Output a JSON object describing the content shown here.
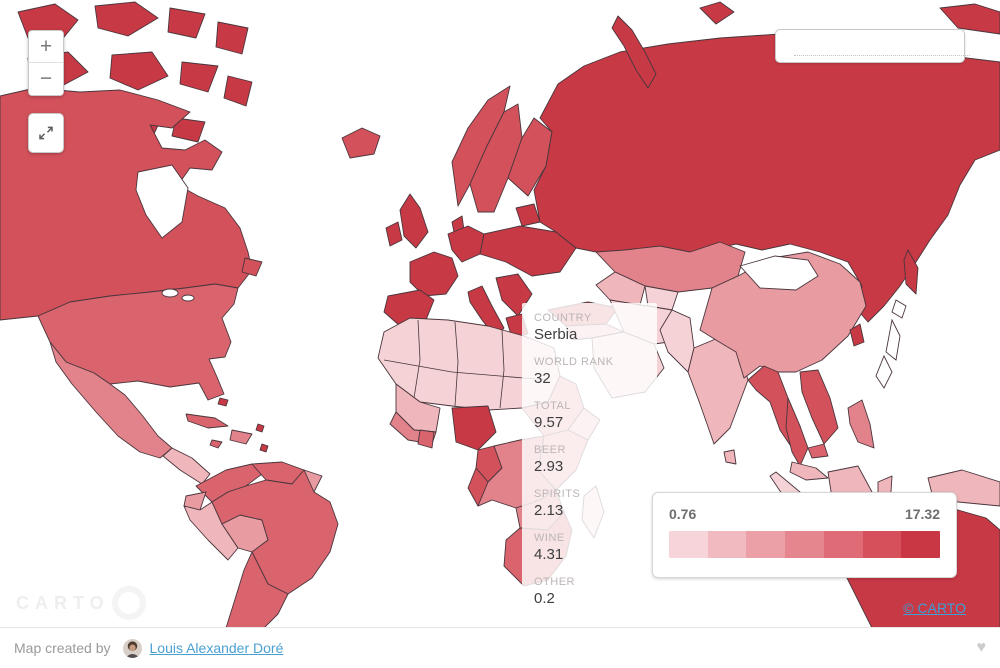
{
  "controls": {
    "zoom_in_label": "+",
    "zoom_out_label": "−"
  },
  "search": {
    "value": "",
    "placeholder": ""
  },
  "tooltip": {
    "fields": [
      {
        "label": "COUNTRY",
        "value": "Serbia"
      },
      {
        "label": "WORLD RANK",
        "value": "32"
      },
      {
        "label": "TOTAL",
        "value": "9.57"
      },
      {
        "label": "BEER",
        "value": "2.93"
      },
      {
        "label": "SPIRITS",
        "value": "2.13"
      },
      {
        "label": "WINE",
        "value": "4.31"
      },
      {
        "label": "OTHER",
        "value": "0.2"
      }
    ]
  },
  "legend": {
    "min_label": "0.76",
    "max_label": "17.32",
    "colors": [
      "#f7d4d9",
      "#f1bac0",
      "#eb9fa7",
      "#e5868e",
      "#de6b75",
      "#d5505a",
      "#c93744"
    ]
  },
  "attribution": {
    "carto_label": "© CARTO"
  },
  "watermark": {
    "text": "CARTO"
  },
  "footer": {
    "created_by_text": "Map created by",
    "author_name": "Louis Alexander Doré",
    "heart_glyph": "♥"
  },
  "theme": {
    "choropleth_min_color": "#f4d2d6",
    "choropleth_max_color": "#c63945",
    "link_blue": "#4aa0d3",
    "attribution_blue": "#3ba0d6"
  }
}
